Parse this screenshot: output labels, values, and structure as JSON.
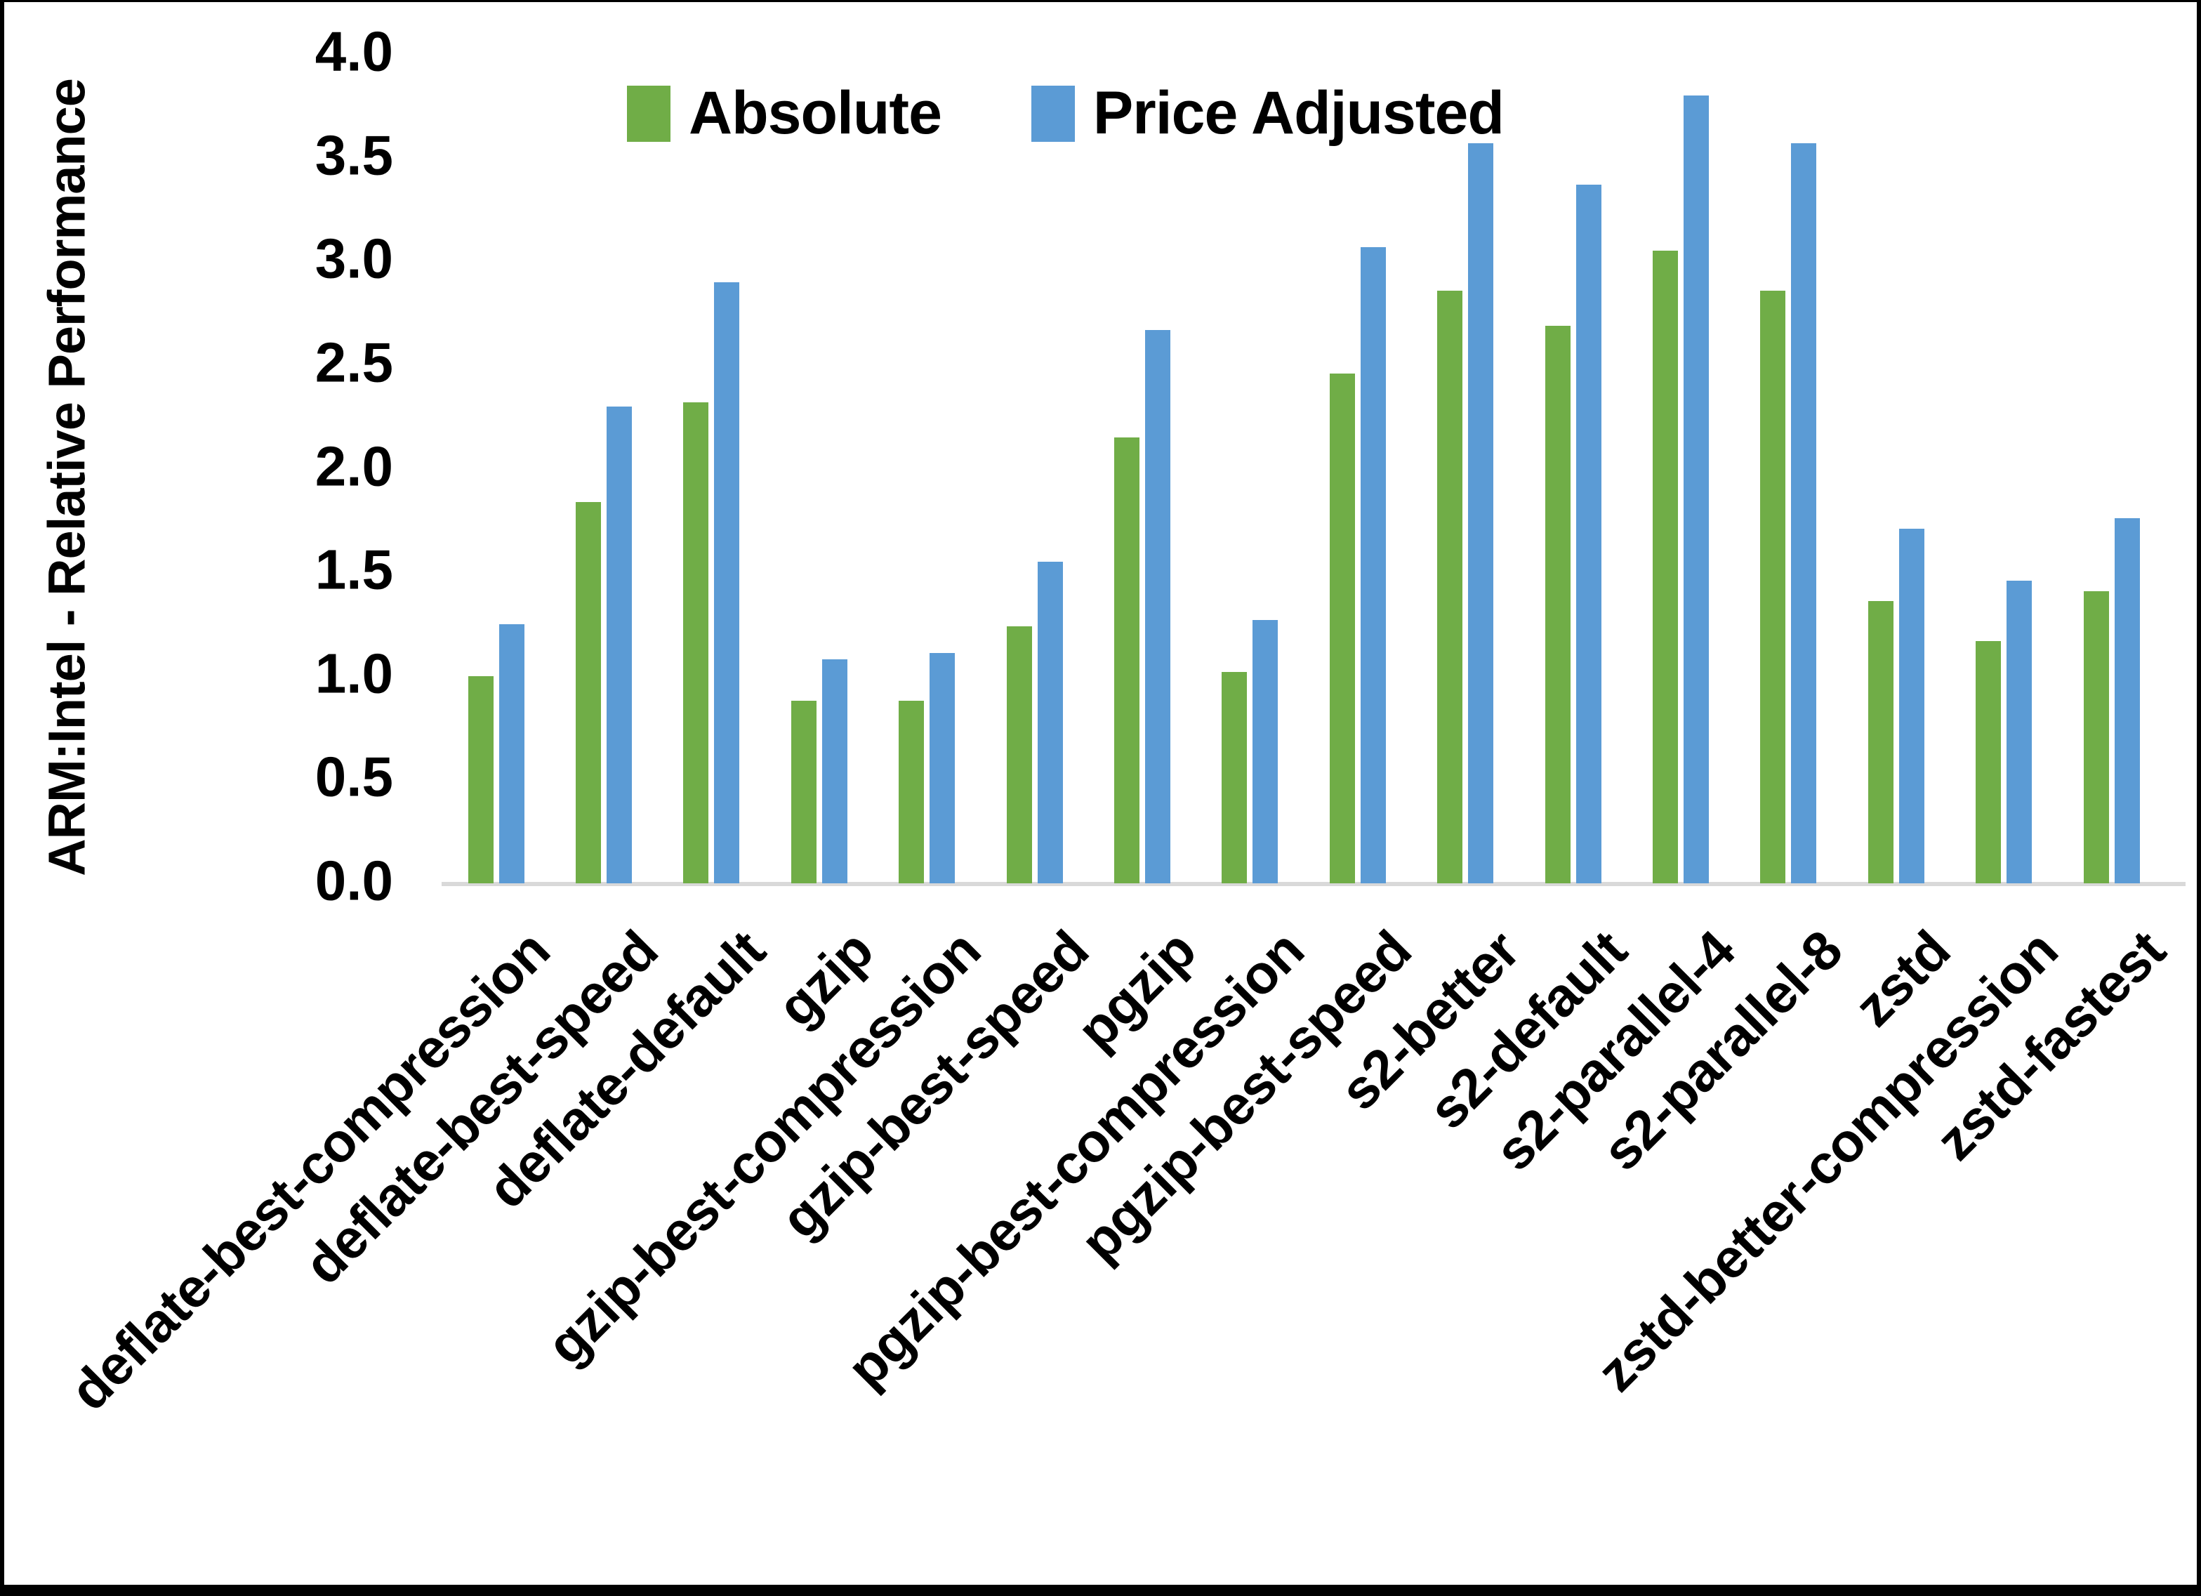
{
  "figure": {
    "background": "#ffffff",
    "frame_color": "#000000",
    "axis_line_color": "#d9d9d9"
  },
  "legend": [
    {
      "label": "Absolute",
      "color": "#70AD47"
    },
    {
      "label": "Price Adjusted",
      "color": "#5B9BD5"
    }
  ],
  "chart_data": {
    "type": "bar",
    "title": "",
    "ylabel": "ARM:Intel - Relative Performance",
    "xlabel": "",
    "ylim": [
      0,
      4
    ],
    "ytick_step": 0.5,
    "yticks": [
      "0.0",
      "0.5",
      "1.0",
      "1.5",
      "2.0",
      "2.5",
      "3.0",
      "3.5",
      "4.0"
    ],
    "grid": false,
    "legend_position": "top",
    "categories": [
      "deflate-best-compression",
      "deflate-best-speed",
      "deflate-default",
      "gzip",
      "gzip-best-compression",
      "gzip-best-speed",
      "pgzip",
      "pgzip-best-compression",
      "pgzip-best-speed",
      "s2-better",
      "s2-default",
      "s2-parallel-4",
      "s2-parallel-8",
      "zstd",
      "zstd-better-compression",
      "zstd-fastest"
    ],
    "series": [
      {
        "name": "Absolute",
        "color": "#70AD47",
        "values": [
          1.0,
          1.84,
          2.32,
          0.88,
          0.88,
          1.24,
          2.15,
          1.02,
          2.46,
          2.86,
          2.69,
          3.05,
          2.86,
          1.36,
          1.17,
          1.41
        ]
      },
      {
        "name": "Price Adjusted",
        "color": "#5B9BD5",
        "values": [
          1.25,
          2.3,
          2.9,
          1.08,
          1.11,
          1.55,
          2.67,
          1.27,
          3.07,
          3.57,
          3.37,
          3.8,
          3.57,
          1.71,
          1.46,
          1.76
        ]
      }
    ]
  }
}
